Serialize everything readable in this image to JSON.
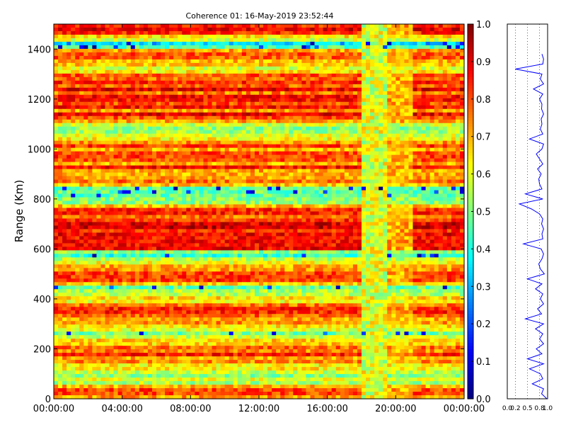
{
  "chart_data": [
    {
      "type": "heatmap",
      "title": "Coherence 01: 16-May-2019 23:52:44",
      "ylabel": "Range (Km)",
      "xlabel": "",
      "x_ticks": [
        "00:00:00",
        "04:00:00",
        "08:00:00",
        "12:00:00",
        "16:00:00",
        "20:00:00",
        "00:00:00"
      ],
      "x_range_hours": [
        0,
        24
      ],
      "y_ticks": [
        "0",
        "200",
        "400",
        "600",
        "800",
        "1000",
        "1200",
        "1400"
      ],
      "ylim": [
        0,
        1500
      ],
      "colorbar": {
        "colormap": "jet",
        "range": [
          0.0,
          1.0
        ],
        "ticks": [
          "0.0",
          "0.1",
          "0.2",
          "0.3",
          "0.4",
          "0.5",
          "0.6",
          "0.7",
          "0.8",
          "0.9",
          "1.0"
        ]
      },
      "range_profile": [
        {
          "range_km": 0,
          "coherence": 0.62
        },
        {
          "range_km": 40,
          "coherence": 0.82
        },
        {
          "range_km": 65,
          "coherence": 0.55
        },
        {
          "range_km": 100,
          "coherence": 0.5
        },
        {
          "range_km": 140,
          "coherence": 0.72
        },
        {
          "range_km": 175,
          "coherence": 0.8
        },
        {
          "range_km": 220,
          "coherence": 0.7
        },
        {
          "range_km": 260,
          "coherence": 0.45
        },
        {
          "range_km": 300,
          "coherence": 0.75
        },
        {
          "range_km": 340,
          "coherence": 0.82
        },
        {
          "range_km": 380,
          "coherence": 0.7
        },
        {
          "range_km": 440,
          "coherence": 0.5
        },
        {
          "range_km": 480,
          "coherence": 0.82
        },
        {
          "range_km": 520,
          "coherence": 0.78
        },
        {
          "range_km": 580,
          "coherence": 0.42
        },
        {
          "range_km": 600,
          "coherence": 0.85
        },
        {
          "range_km": 650,
          "coherence": 0.86
        },
        {
          "range_km": 700,
          "coherence": 0.88
        },
        {
          "range_km": 750,
          "coherence": 0.8
        },
        {
          "range_km": 780,
          "coherence": 0.6
        },
        {
          "range_km": 830,
          "coherence": 0.45
        },
        {
          "range_km": 880,
          "coherence": 0.8
        },
        {
          "range_km": 930,
          "coherence": 0.78
        },
        {
          "range_km": 980,
          "coherence": 0.72
        },
        {
          "range_km": 1020,
          "coherence": 0.75
        },
        {
          "range_km": 1080,
          "coherence": 0.55
        },
        {
          "range_km": 1120,
          "coherence": 0.82
        },
        {
          "range_km": 1160,
          "coherence": 0.8
        },
        {
          "range_km": 1200,
          "coherence": 0.84
        },
        {
          "range_km": 1250,
          "coherence": 0.8
        },
        {
          "range_km": 1290,
          "coherence": 0.78
        },
        {
          "range_km": 1335,
          "coherence": 0.65
        },
        {
          "range_km": 1380,
          "coherence": 0.82
        },
        {
          "range_km": 1420,
          "coherence": 0.3
        },
        {
          "range_km": 1460,
          "coherence": 0.86
        },
        {
          "range_km": 1500,
          "coherence": 0.8
        }
      ]
    },
    {
      "type": "line",
      "title": "",
      "x_ticks": [
        "0.0",
        "0.2",
        "0.5",
        "0.8",
        "1.0"
      ],
      "xlim": [
        0,
        1
      ],
      "ylim": [
        0,
        1500
      ],
      "series": [
        {
          "color": "#0000ff",
          "x": [
            0.98,
            0.85,
            0.9,
            0.62,
            0.88,
            0.82,
            0.55,
            0.9,
            0.5,
            0.86,
            0.72,
            0.9,
            0.8,
            0.88,
            0.7,
            0.9,
            0.45,
            0.85,
            0.75,
            0.9,
            0.82,
            0.88,
            0.7,
            0.86,
            0.5,
            0.92,
            0.82,
            0.78,
            0.86,
            0.9,
            0.84,
            0.4,
            0.88,
            0.86,
            0.9,
            0.85,
            0.88,
            0.8,
            0.6,
            0.3,
            0.88,
            0.45,
            0.86,
            0.8,
            0.78,
            0.84,
            0.75,
            0.88,
            0.8,
            0.72,
            0.86,
            0.9,
            0.55,
            0.88,
            0.82,
            0.86,
            0.84,
            0.9,
            0.85,
            0.86,
            0.8,
            0.88,
            0.65,
            0.9,
            0.82,
            0.86,
            0.2,
            0.88,
            0.9,
            0.86
          ],
          "y": [
            0,
            20,
            40,
            60,
            80,
            100,
            120,
            140,
            160,
            180,
            200,
            220,
            240,
            260,
            280,
            300,
            320,
            340,
            360,
            380,
            400,
            420,
            440,
            460,
            480,
            500,
            520,
            540,
            560,
            580,
            600,
            620,
            640,
            660,
            680,
            700,
            720,
            740,
            760,
            780,
            800,
            820,
            840,
            860,
            880,
            900,
            920,
            940,
            960,
            980,
            1000,
            1020,
            1040,
            1060,
            1080,
            1100,
            1120,
            1140,
            1160,
            1180,
            1200,
            1220,
            1240,
            1260,
            1280,
            1300,
            1320,
            1340,
            1360,
            1380
          ]
        }
      ]
    }
  ]
}
